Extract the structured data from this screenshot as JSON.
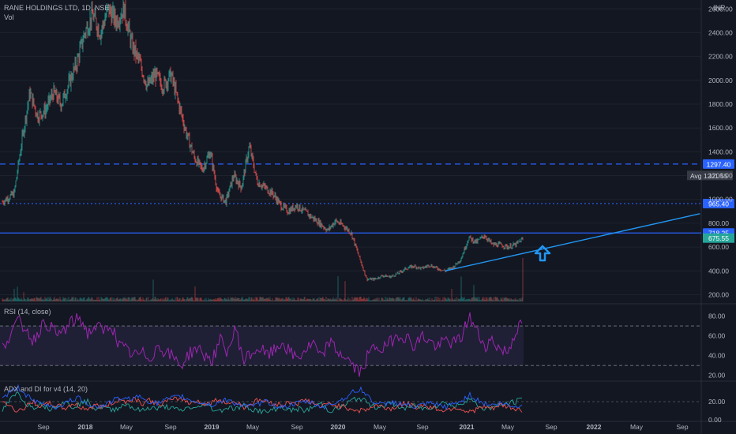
{
  "header": {
    "symbol": "RANE HOLDINGS LTD, 1D, NSE",
    "volume_label": "Vol",
    "currency": "INR"
  },
  "rsi_panel": {
    "label": "RSI (14, close)"
  },
  "adx_panel": {
    "label": "ADX and DI for v4 (14, 20)"
  },
  "colors": {
    "background": "#131722",
    "up": "#26a69a",
    "down": "#ef5350",
    "level_line": "#2962ff",
    "trend_line": "#2196f3",
    "rsi": "#9c27b0",
    "rsi_band": "#7e57c2",
    "price_tag": "#26a69a",
    "avg_tag": "#363a45"
  },
  "chart_data": [
    {
      "type": "candlestick",
      "title": "RANE HOLDINGS LTD, 1D, NSE",
      "ylim": [
        150,
        2650
      ],
      "y_ticks": [
        "2600.00",
        "2400.00",
        "2200.00",
        "2000.00",
        "1800.00",
        "1600.00",
        "1400.00",
        "1200.00",
        "1000.00",
        "800.00",
        "600.00",
        "400.00",
        "200.00"
      ],
      "x_ticks": [
        "Sep",
        "2018",
        "May",
        "Sep",
        "2019",
        "May",
        "Sep",
        "2020",
        "May",
        "Sep",
        "2021",
        "May",
        "Sep",
        "2022",
        "May",
        "Sep"
      ],
      "price_path": [
        {
          "x": 0.0,
          "y": 980
        },
        {
          "x": 1.5,
          "y": 1050
        },
        {
          "x": 2.5,
          "y": 1500
        },
        {
          "x": 3.5,
          "y": 1900
        },
        {
          "x": 4.5,
          "y": 1700
        },
        {
          "x": 5.5,
          "y": 1750
        },
        {
          "x": 6.5,
          "y": 1900
        },
        {
          "x": 7.5,
          "y": 1800
        },
        {
          "x": 9.5,
          "y": 2150
        },
        {
          "x": 10.5,
          "y": 2400
        },
        {
          "x": 11.5,
          "y": 2550
        },
        {
          "x": 12.5,
          "y": 2400
        },
        {
          "x": 13.5,
          "y": 2600
        },
        {
          "x": 14.5,
          "y": 2500
        },
        {
          "x": 15.5,
          "y": 2600
        },
        {
          "x": 16.5,
          "y": 2300
        },
        {
          "x": 17.5,
          "y": 2150
        },
        {
          "x": 18.5,
          "y": 1950
        },
        {
          "x": 19.5,
          "y": 2050
        },
        {
          "x": 20.5,
          "y": 1950
        },
        {
          "x": 21.5,
          "y": 2050
        },
        {
          "x": 22.5,
          "y": 1800
        },
        {
          "x": 23.5,
          "y": 1550
        },
        {
          "x": 24.5,
          "y": 1350
        },
        {
          "x": 25.5,
          "y": 1250
        },
        {
          "x": 26.5,
          "y": 1400
        },
        {
          "x": 27.5,
          "y": 1050
        },
        {
          "x": 28.5,
          "y": 980
        },
        {
          "x": 29.5,
          "y": 1200
        },
        {
          "x": 30.5,
          "y": 1100
        },
        {
          "x": 31.5,
          "y": 1450
        },
        {
          "x": 32.5,
          "y": 1150
        },
        {
          "x": 33.5,
          "y": 1100
        },
        {
          "x": 34.5,
          "y": 1050
        },
        {
          "x": 35.5,
          "y": 950
        },
        {
          "x": 36.5,
          "y": 900
        },
        {
          "x": 37.5,
          "y": 950
        },
        {
          "x": 38.5,
          "y": 900
        },
        {
          "x": 39.5,
          "y": 850
        },
        {
          "x": 40.5,
          "y": 800
        },
        {
          "x": 41.5,
          "y": 740
        },
        {
          "x": 42.5,
          "y": 820
        },
        {
          "x": 43.5,
          "y": 780
        },
        {
          "x": 44.5,
          "y": 720
        },
        {
          "x": 45.5,
          "y": 520
        },
        {
          "x": 46.5,
          "y": 330
        },
        {
          "x": 47.5,
          "y": 330
        },
        {
          "x": 48.5,
          "y": 360
        },
        {
          "x": 49.5,
          "y": 350
        },
        {
          "x": 50.5,
          "y": 380
        },
        {
          "x": 51.5,
          "y": 420
        },
        {
          "x": 52.5,
          "y": 440
        },
        {
          "x": 53.5,
          "y": 420
        },
        {
          "x": 54.5,
          "y": 450
        },
        {
          "x": 55.5,
          "y": 420
        },
        {
          "x": 56.5,
          "y": 400
        },
        {
          "x": 57.5,
          "y": 430
        },
        {
          "x": 58.5,
          "y": 500
        },
        {
          "x": 59.5,
          "y": 680
        },
        {
          "x": 60.5,
          "y": 640
        },
        {
          "x": 61.5,
          "y": 700
        },
        {
          "x": 62.5,
          "y": 620
        },
        {
          "x": 63.5,
          "y": 620
        },
        {
          "x": 64.5,
          "y": 600
        },
        {
          "x": 65.5,
          "y": 620
        },
        {
          "x": 66.5,
          "y": 675
        }
      ],
      "horizontal_lines": [
        {
          "value": 1297.4,
          "label": "1297.40",
          "style": "dashed"
        },
        {
          "value": 965.4,
          "label": "965.40",
          "style": "dotted"
        },
        {
          "value": 718.25,
          "label": "718.25",
          "style": "solid"
        }
      ],
      "avg": {
        "label": "Avg",
        "value": "1201.55"
      },
      "last_price": {
        "label": "675.55",
        "value": 675.55
      },
      "trendline": [
        {
          "x": 56.5,
          "y": 400
        },
        {
          "x": 89.0,
          "y": 880
        }
      ],
      "annotation": "up-arrow"
    },
    {
      "type": "line",
      "title": "RSI (14, close)",
      "ylim": [
        15,
        90
      ],
      "y_ticks": [
        "80.00",
        "60.00",
        "40.00",
        "20.00"
      ],
      "bands": [
        70,
        30
      ],
      "values": [
        48,
        62,
        74,
        68,
        55,
        70,
        72,
        60,
        66,
        74,
        78,
        62,
        70,
        64,
        72,
        50,
        45,
        40,
        42,
        38,
        50,
        44,
        38,
        30,
        42,
        48,
        40,
        36,
        55,
        44,
        68,
        35,
        42,
        48,
        40,
        45,
        54,
        42,
        38,
        46,
        52,
        36,
        55,
        44,
        40,
        30,
        22,
        40,
        50,
        46,
        55,
        62,
        58,
        50,
        60,
        54,
        48,
        56,
        52,
        58,
        80,
        64,
        50,
        56,
        46,
        44,
        66,
        72
      ]
    },
    {
      "type": "line",
      "title": "ADX and DI for v4 (14, 20)",
      "ylim": [
        0,
        40
      ],
      "y_ticks": [
        "20.00",
        "0.00"
      ],
      "series": [
        {
          "color": "#26a69a",
          "values": [
            10,
            22,
            30,
            18,
            14,
            18,
            12,
            16,
            20,
            14,
            18,
            20,
            12,
            15,
            10,
            14,
            18,
            12,
            10,
            14,
            12,
            15,
            12,
            10,
            14,
            12,
            18,
            12,
            10,
            14,
            12,
            16,
            12,
            10,
            8,
            12,
            14,
            10,
            12,
            10,
            14,
            18,
            10,
            12,
            16,
            22,
            24,
            18,
            14,
            16,
            18,
            14,
            12,
            16,
            12,
            14,
            16,
            20,
            14,
            18,
            24,
            16,
            12,
            14,
            16,
            18,
            20,
            24
          ]
        },
        {
          "color": "#ef5350",
          "values": [
            22,
            14,
            10,
            14,
            20,
            14,
            18,
            16,
            12,
            18,
            14,
            12,
            16,
            14,
            18,
            22,
            20,
            24,
            18,
            22,
            16,
            20,
            22,
            24,
            18,
            22,
            16,
            20,
            22,
            18,
            20,
            14,
            18,
            22,
            20,
            18,
            16,
            20,
            18,
            22,
            18,
            14,
            18,
            16,
            14,
            12,
            10,
            12,
            16,
            14,
            12,
            16,
            18,
            14,
            16,
            14,
            12,
            10,
            14,
            12,
            8,
            12,
            14,
            12,
            16,
            14,
            12,
            10
          ]
        },
        {
          "color": "#2962ff",
          "values": [
            24,
            30,
            36,
            28,
            20,
            18,
            16,
            14,
            18,
            22,
            24,
            18,
            14,
            16,
            20,
            24,
            22,
            26,
            24,
            20,
            18,
            22,
            24,
            26,
            22,
            20,
            18,
            16,
            20,
            22,
            18,
            16,
            14,
            18,
            20,
            16,
            14,
            16,
            18,
            20,
            18,
            14,
            16,
            20,
            24,
            30,
            34,
            26,
            18,
            16,
            20,
            18,
            16,
            14,
            16,
            18,
            16,
            14,
            18,
            20,
            28,
            22,
            18,
            16,
            18,
            16,
            14,
            18
          ]
        }
      ]
    }
  ]
}
